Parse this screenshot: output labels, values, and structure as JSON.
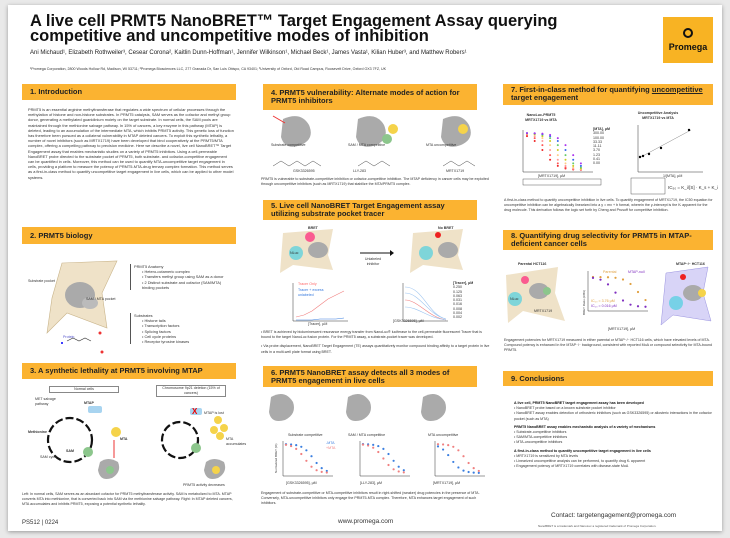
{
  "header": {
    "title": "A live cell PRMT5 NanoBRET™ Target Engagement Assay querying competitive and uncompetitive modes of inhibition",
    "authors": "Ani Michaud¹, Elizabeth Rothweiler³, Cesear Corona², Kaitlin Dunn-Hoffman¹, Jennifer Wilkinson¹, Michael Beck¹, James Vasta¹, Kilian Huber³, and Matthew Robers¹",
    "affiliations": "¹Promega Corporation, 2800 Woods Hollow Rd, Madison, WI 53711; ²Promega Biosciences LLC, 277 Granada Dr, San Luis Obispo, CA 93401; ³University of Oxford, Old Road Campus, Roosevelt Drive, Oxford OX3 7FZ, UK",
    "logo": "Promega"
  },
  "sections": {
    "s1": {
      "title": "1. Introduction",
      "body": "PRMT5 is an essential arginine methyltransferase that regulates a wide spectrum of cellular processes through the methylation of histone and non-histone substrates. In PRMT5 catalysis, SAM serves as the cofactor and methyl group donor, generating a methylated guanidinium moiety on the target substrate. In normal cells, the SAM pools are maintained through the methionine salvage pathway. In 15% of cancers, a key enzyme in this pathway (MTAP) is deleted, leading to an accumulation of the intermediate MTA, which inhibits PRMT5 activity. This genetic loss of function has therefore been pursued as a collateral vulnerability in MTAP deleted cancers. To exploit this synthetic lethality, a number of novel inhibitors (such as MRTX1719) have been developed that bind cooperatively at the PRMT5/MTA complex, offering a compelling pathway to precision medicine. Here we describe a novel, live cell NanoBRET™ Target Engagement assay that enables mechanistic studies on a variety of PRMT5 inhibitors. Using a cell-permeable NanoBRET probe directed to the substrate pocket of PRMT5, both substrate- and cofactor-competitive engagement can be quantified in cells. Moreover, this method can be used to quantify MTA-uncompetitive target engagement in cells, providing a platform to measure the potency of PRMT5-MTA-drug ternary complex formation. This method serves as a first-in-class method to quantify uncompetitive target engagement in live cells, which can be applied to other model systems."
    },
    "s2": {
      "title": "2. PRMT5 biology",
      "substrate_pocket": "Substrate pocket",
      "sam_pocket": "SAM / MTA pocket",
      "protein": "Protein",
      "anatomy_title": "PRMT5 Anatomy",
      "anatomy": [
        "Hetero-octameric complex",
        "Transfers methyl group using SAM as a donor",
        "2 Distinct substrate and cofactor (SAM/MTA) binding pockets"
      ],
      "substrates_title": "Substrates",
      "substrates": [
        "Histone tails",
        "Transcription factors",
        "Splicing factors",
        "Cell cycle proteins",
        "Receptor tyrosine kinases"
      ]
    },
    "s3": {
      "title": "3. A synthetic lethality at PRMT5 involving MTAP",
      "normal": "Normal cells",
      "deletion": "Chromosome 9p21 deletion (15% of cancers)",
      "met_salvage": "MET salvage pathway",
      "mtap": "MTAP",
      "methionine": "Methionine",
      "sam": "SAM",
      "sam_cycle": "SAM cycle",
      "mta": "MTA",
      "mtap_lost": "MTAP is lost",
      "mta_acc": "MTA accumulates",
      "activity_dec": "PRMT5 activity decreases",
      "caption": "Left: In normal cells, SAM serves as an abundant cofactor for PRMT5 methyltransferase activity. SAM is metabolized to MTA. MTAP converts MTA into methionine, that is converted back into SAM via the methionine salvage pathway. Right: In MTAP deleted cancers, MTA accumulates and inhibits PRMT5, exposing a potential synthetic lethality."
    },
    "s4": {
      "title": "4. PRMT5 vulnerability: Alternate modes of action for PRMT5 inhibitors",
      "modes": [
        "Substrate competitive",
        "SAM / MTA competitive",
        "MTA uncompetitive"
      ],
      "compounds": [
        "GSK3326595",
        "LLY-283",
        "MRTX1719"
      ],
      "caption": "PRMT5 is vulnerable to substrate-competitive inhibition or cofactor-competitive inhibition. The MTAP deficiency in cancer cells may be exploited through uncompetitive inhibitors (such as MRTX1719) that stabilize the MTA/PRMT5 complex."
    },
    "s5": {
      "title": "5. Live cell NanoBRET Target Engagement assay utilizing substrate pocket tracer",
      "bret": "BRET",
      "no_bret": "No BRET",
      "unlabeled": "Unlabeled inhibitor",
      "nluc": "NLuc",
      "legend": [
        "Tracer Only",
        "Tracer + excess unlabeled"
      ],
      "xlabel1": "[Tracer], µM",
      "xlabel2": "[GSK3326595], µM",
      "tracer_label": "[Tracer], µM",
      "tracer_conc": [
        "0.250",
        "0.125",
        "0.063",
        "0.031",
        "0.016",
        "0.008",
        "0.004",
        "0.002"
      ],
      "bullets": [
        "BRET is achieved by bioluminescent resonance energy transfer from NanoLuc® luciferase to the cell-permeable fluorescent Tracer that is bound to the target NanoLuc fusion protein. For the PRMT5 assay, a substrate-pocket tracer was developed.",
        "Via probe displacement, NanoBRET Target Engagement (TE) assays quantitatively monitor compound binding affinity to a target protein in live cells in a multi-well plate format using BRET."
      ]
    },
    "s6": {
      "title": "6. PRMT5 NanoBRET assay detects all 3 modes of PRMT5 engagement in live cells",
      "modes": [
        "Substrate competitive",
        "SAM / MTA competitive",
        "MTA uncompetitive"
      ],
      "legend": [
        "-MTA",
        "+MTA"
      ],
      "xlabels": [
        "[GSK3326595], µM",
        "[LLY-283], µM",
        "[MRTX1719], µM"
      ],
      "ylabel": "Normalized BRET (%)",
      "caption": "Engagement of substrate-competitive or MTA-competitive inhibitors result in right-shifted (weaker) drug potencies in the presence of MTA. Conversely, MTA-uncompetitive inhibitors only engage the PRMT5-MTA complex. Therefore, MTA enhances target engagement of such inhibitors."
    },
    "s7": {
      "title_pre": "7. First-in-class method for quantifying ",
      "title_u": "uncompetitive",
      "title_post": " target engagement",
      "chart1_title": "NanoLuc-PRMT5 MRTX1719 vs MTA",
      "chart2_title": "Uncompetitive Analysis MRTX1719 vs MTA",
      "mta_label": "[MTA], µM",
      "mta_conc": [
        "300.00",
        "100.00",
        "33.33",
        "11.11",
        "3.70",
        "1.23",
        "0.41",
        "0.00"
      ],
      "xlabel1": "[MRTX1719], µM",
      "xlabel2": "1/[MTA], µM",
      "equation": "IC₅₀ = K_i/[S] · K_s + K_i",
      "caption": "A first-in-class method to quantify uncompetitive inhibition in live cells. To quantify engagement of MRTX1719, the IC50 equation for uncompetitive inhibition can be algebraically linearized into a y = mx + b format, wherein the y-intercept is the Kᵢ apparent for the drug molecule. This derivation follows the logic set forth by Cheng and Prusoff for competitive inhibition."
    },
    "s8": {
      "title": "8. Quantifying drug selectivity for PRMT5 in MTAP-deficient cancer cells",
      "parental": "Parental HCT116",
      "mtap_null": "MTAP⁻/⁻ HCT116",
      "legend": [
        "Parental",
        "MTAP-null"
      ],
      "ic50a": "IC₅₀ = 3.76 µM",
      "ic50b": "IC₅₀ = 0.016 µM",
      "xlabel": "[MRTX1719], µM",
      "ylabel": "BRET Ratio (mBU)",
      "compound": "MRTX1719",
      "sam": "SAM",
      "mta": "MTA",
      "nluc": "NLuc",
      "caption": "Engagement potencies for MRTX1719 measured in either parental or MTAP⁻/⁻ HCT116 cells, which have elevated levels of MTA. Compound potency is enhanced in the MTAP⁻/⁻ background, consistent with reported MoA or compound selectivity for MTA-bound PRMT5."
    },
    "s9": {
      "title": "9. Conclusions",
      "groups": [
        {
          "head": "A live cell, PRMT5 NanoBRET target engagement assay has been developed",
          "items": [
            "NanoBRET probe based on a known substrate pocket inhibitor",
            "NanoBRET assay enables detection of orthosteric inhibitors (such as GSK3326595) or allosteric interactions in the cofactor pocket (such as MTA)"
          ]
        },
        {
          "head": "PRMT5 NanoBRET assay enables mechanistic analysis of a variety of mechanisms",
          "items": [
            "Substrate-competitive inhibitors",
            "SAM/MTA-competitive inhibitors",
            "MTA-uncompetitive inhibitors"
          ]
        },
        {
          "head": "A first-in-class method to quantify uncompetitive target engagement in live cells",
          "items": [
            "MRTX1719 is sensitized by MTA levels",
            "Linearized uncompetitive analysis can be performed, to quantify drug Kᵢ apparent",
            "Engagement potency of MRTX1719 correlates with disease-state MoA"
          ]
        }
      ]
    }
  },
  "footer": {
    "code": "PS512 | 0224",
    "website": "www.promega.com",
    "contact": "Contact: targetengagement@promega.com",
    "trademark": "NanoBRET is a trademark and NanoLuc a registered trademark of Promega Corporation."
  },
  "colors": {
    "accent": "#fbb331",
    "minus_mta": "#3b7fe0",
    "plus_mta": "#f08080"
  }
}
